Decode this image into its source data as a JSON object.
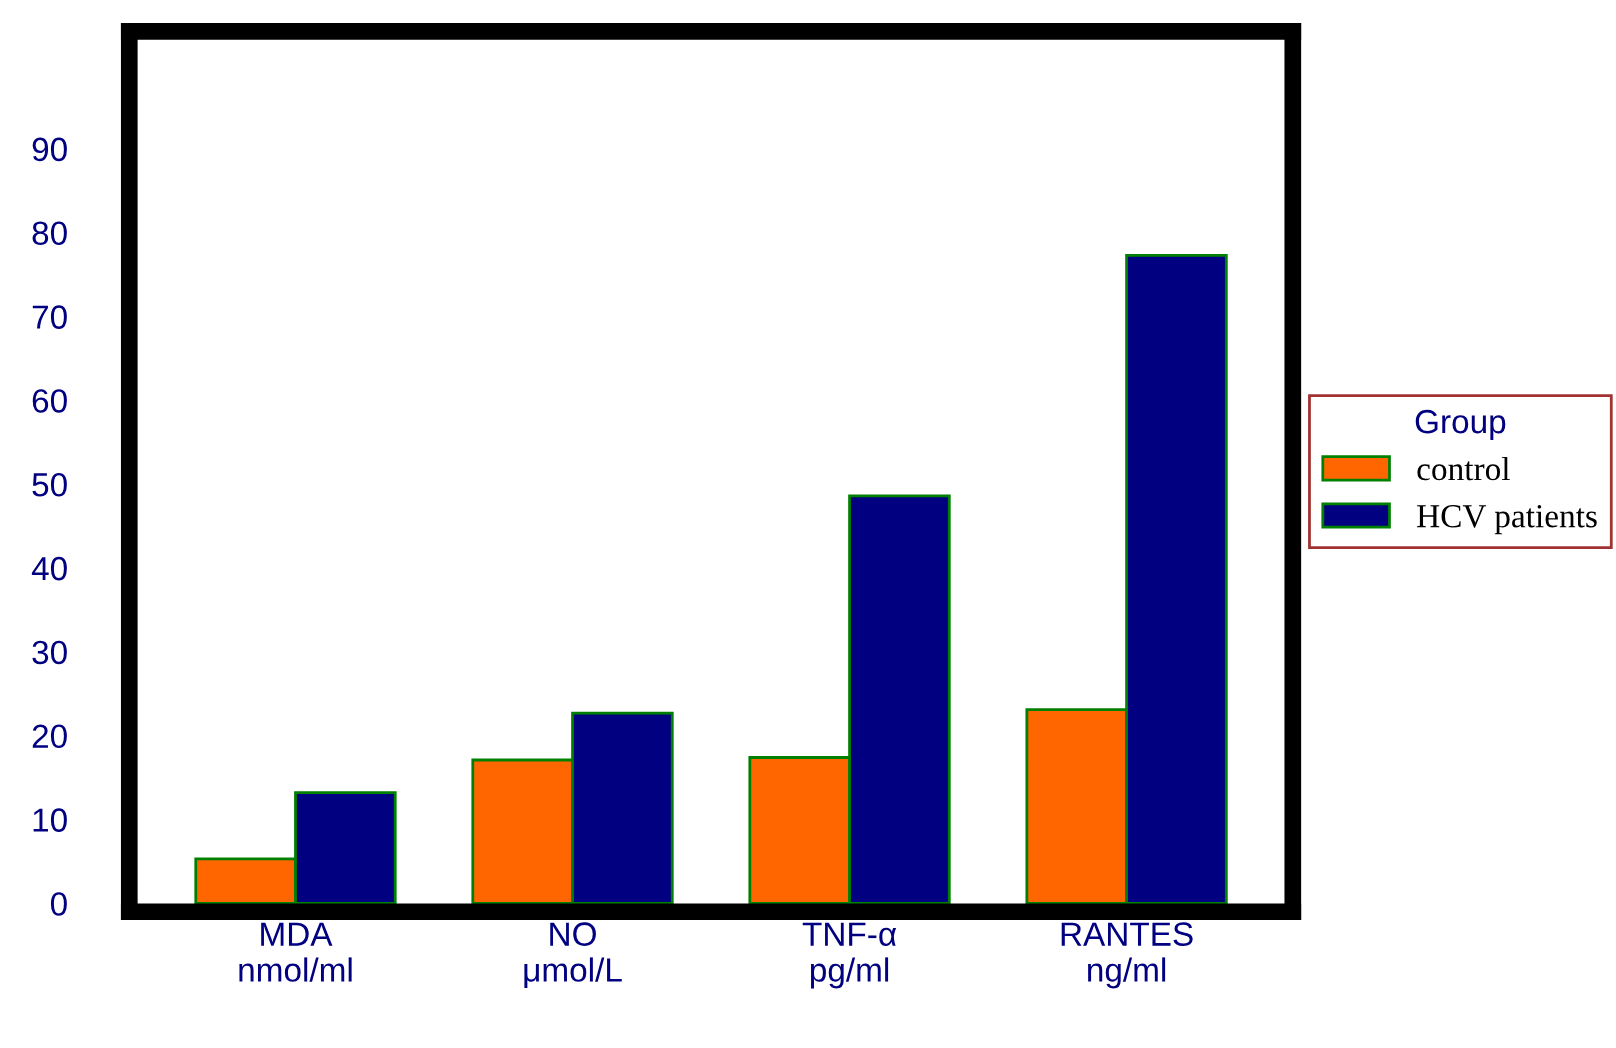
{
  "chart_data": {
    "type": "bar",
    "categories": [
      "MDA\nnmol/ml",
      "NO\nμmol/L",
      "TNF-α\npg/ml",
      "RANTES\nng/ml"
    ],
    "series": [
      {
        "name": "control",
        "color": "#ff6600",
        "values": [
          5.3,
          17.1,
          17.4,
          23.1
        ]
      },
      {
        "name": "HCV patients",
        "color": "#000080",
        "values": [
          13.2,
          22.7,
          48.6,
          77.3
        ]
      }
    ],
    "ylim": [
      -1,
      104
    ],
    "yticks": [
      0,
      10,
      20,
      30,
      40,
      50,
      60,
      70,
      80,
      90
    ],
    "legend": "right",
    "legend_title": "Group",
    "grid": false
  }
}
